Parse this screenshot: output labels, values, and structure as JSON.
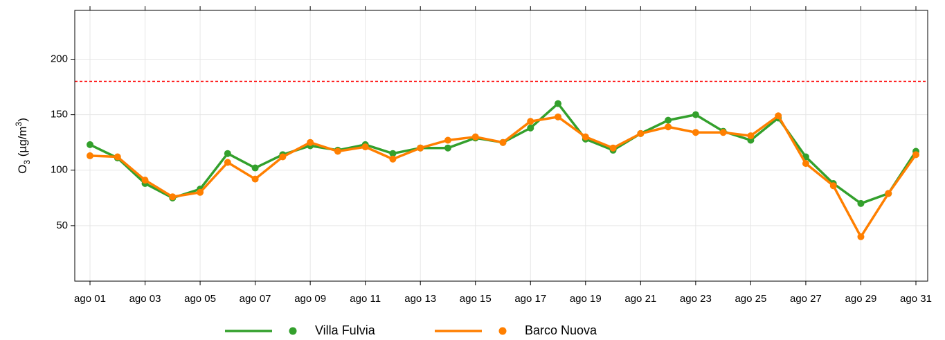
{
  "chart_data": {
    "type": "line",
    "y_label_parts": [
      "O",
      "3",
      " (µg/m",
      "3",
      ")"
    ],
    "categories": [
      "ago 01",
      null,
      "ago 03",
      null,
      "ago 05",
      null,
      "ago 07",
      null,
      "ago 09",
      null,
      "ago 11",
      null,
      "ago 13",
      null,
      "ago 15",
      null,
      "ago 17",
      null,
      "ago 19",
      null,
      "ago 21",
      null,
      "ago 23",
      null,
      "ago 25",
      null,
      "ago 27",
      null,
      "ago 29",
      null,
      "ago 31"
    ],
    "series": [
      {
        "name": "Villa Fulvia",
        "color": "#33a02c",
        "values": [
          123,
          111,
          88,
          75,
          83,
          115,
          102,
          114,
          122,
          118,
          123,
          115,
          120,
          120,
          129,
          125,
          138,
          160,
          128,
          118,
          133,
          145,
          150,
          135,
          127,
          147,
          112,
          88,
          70,
          79,
          117
        ]
      },
      {
        "name": "Barco Nuova",
        "color": "#ff7f00",
        "values": [
          113,
          112,
          91,
          76,
          80,
          107,
          92,
          112,
          125,
          117,
          121,
          110,
          120,
          127,
          130,
          125,
          144,
          148,
          130,
          120,
          133,
          139,
          134,
          134,
          131,
          149,
          106,
          86,
          40,
          79,
          114
        ]
      }
    ],
    "threshold": 180,
    "threshold_color": "#ff0000",
    "ylim": [
      0,
      244
    ],
    "yticks": [
      50,
      100,
      150,
      200
    ],
    "grid": true
  }
}
